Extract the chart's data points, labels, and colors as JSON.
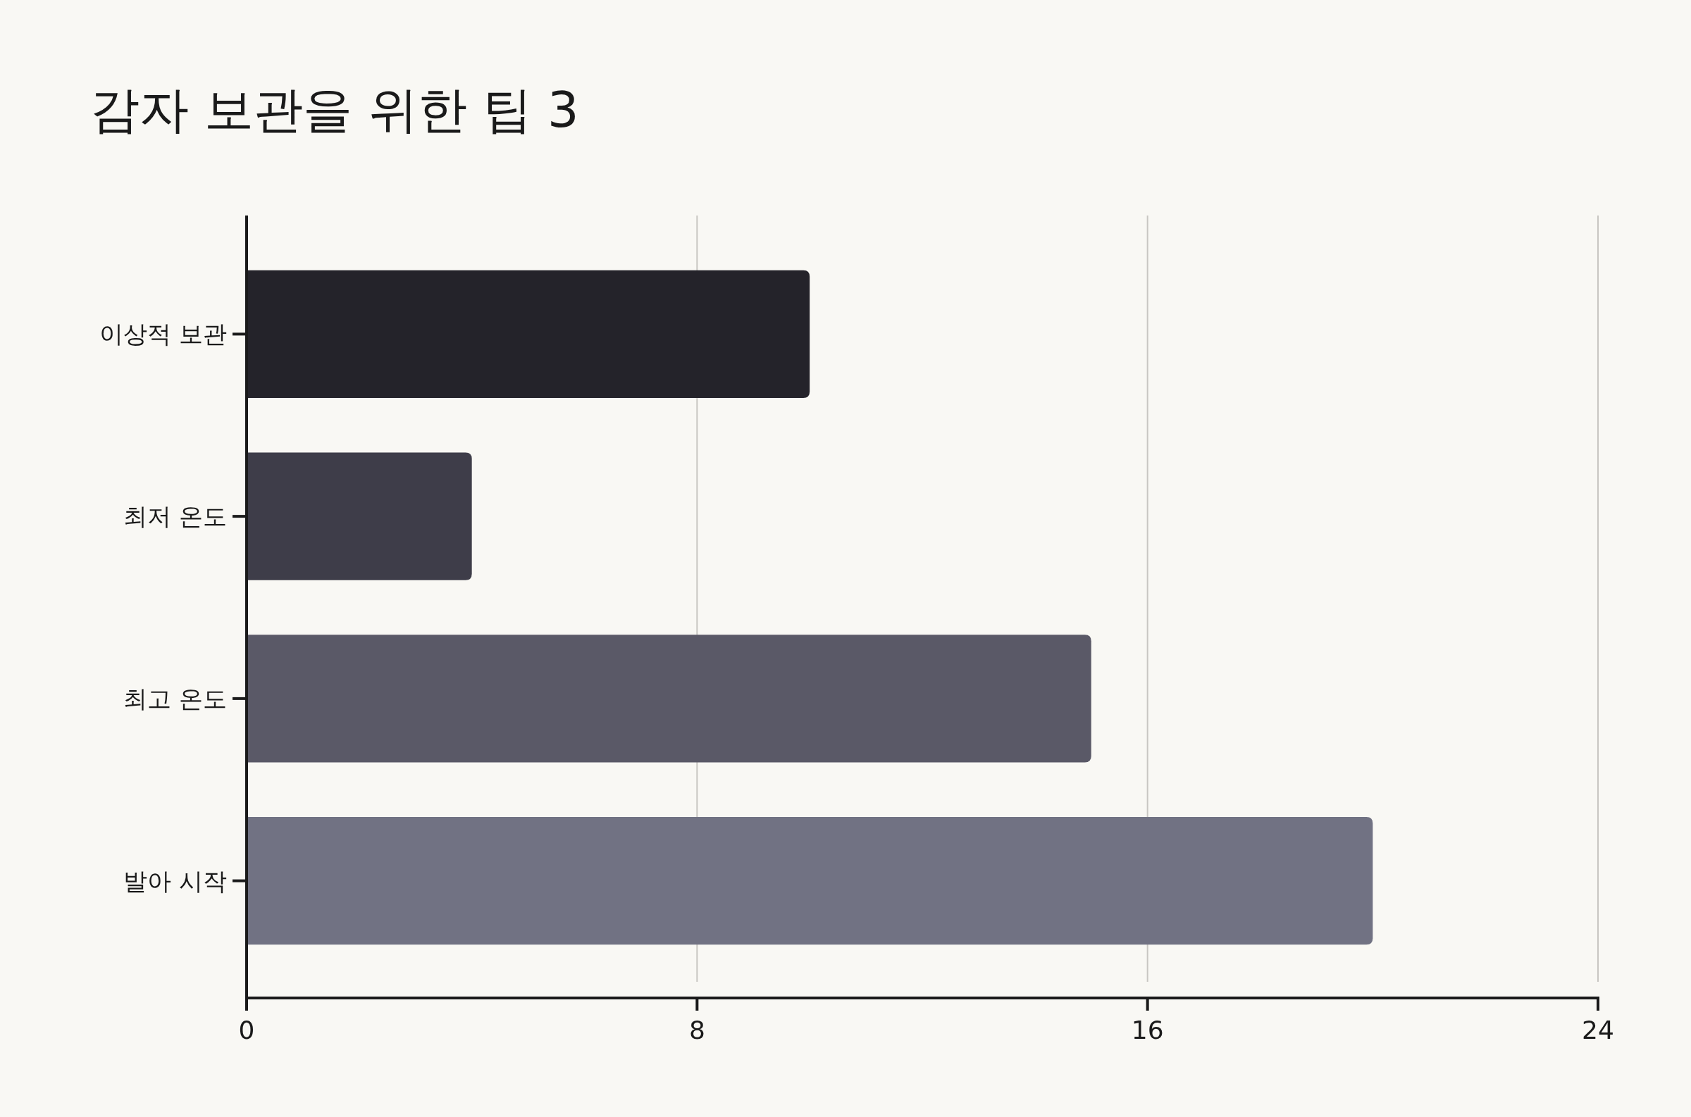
{
  "chart_data": {
    "type": "bar",
    "orientation": "horizontal",
    "title": "감자 보관을 위한 팁 3",
    "categories": [
      "이상적 보관",
      "최저 온도",
      "최고 온도",
      "발아 시작"
    ],
    "values": [
      10,
      4,
      15,
      20
    ],
    "colors": [
      "#24232a",
      "#3e3d49",
      "#5a5967",
      "#717283"
    ],
    "xlim": [
      0,
      24
    ],
    "xticks": [
      0,
      8,
      16,
      24
    ],
    "grid": "x"
  }
}
